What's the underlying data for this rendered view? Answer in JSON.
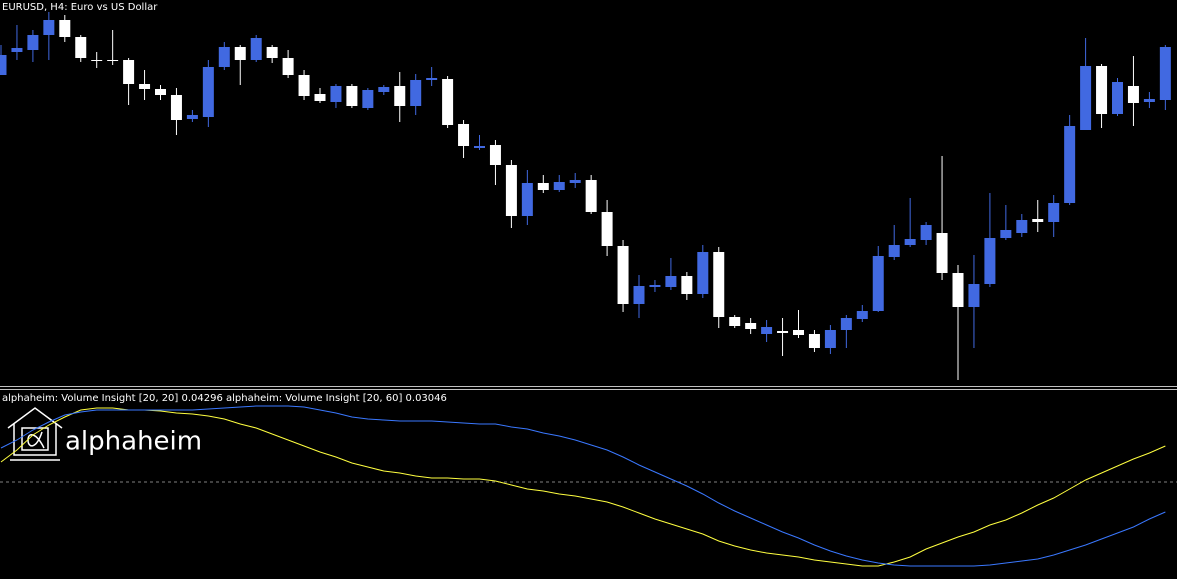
{
  "chart_data": [
    {
      "type": "candlestick",
      "title": "EURUSD, H4:  Euro vs US Dollar",
      "up_color": "#4169e1",
      "down_color": "#ffffff",
      "ylim": [
        0,
        385
      ],
      "open": [
        310,
        333,
        335,
        350,
        365,
        348,
        325,
        325,
        325,
        301,
        296,
        290,
        266,
        268,
        318,
        338,
        325,
        338,
        327,
        310,
        291,
        283,
        299,
        277,
        293,
        299,
        279,
        305,
        306,
        261,
        237,
        240,
        220,
        169,
        202,
        195,
        202,
        205,
        173,
        139,
        81,
        98,
        98,
        109,
        91,
        133,
        68,
        62,
        51,
        54,
        55,
        51,
        37,
        55,
        66,
        74,
        128,
        140,
        145,
        152,
        112,
        78,
        101,
        147,
        152,
        166,
        163,
        182,
        255,
        319,
        271,
        299,
        283,
        285
      ],
      "high": [
        340,
        360,
        355,
        373,
        370,
        350,
        333,
        355,
        327,
        315,
        300,
        297,
        275,
        325,
        343,
        340,
        350,
        340,
        335,
        315,
        297,
        301,
        301,
        297,
        300,
        313,
        311,
        318,
        309,
        265,
        250,
        245,
        225,
        215,
        210,
        210,
        212,
        210,
        185,
        145,
        110,
        105,
        127,
        113,
        140,
        138,
        70,
        67,
        65,
        67,
        75,
        55,
        60,
        70,
        80,
        139,
        160,
        187,
        163,
        229,
        120,
        130,
        192,
        180,
        171,
        185,
        190,
        270,
        347,
        321,
        307,
        329,
        293,
        340
      ],
      "low": [
        310,
        325,
        323,
        325,
        343,
        323,
        317,
        320,
        280,
        285,
        285,
        250,
        263,
        258,
        315,
        300,
        323,
        322,
        307,
        285,
        282,
        277,
        277,
        275,
        290,
        263,
        270,
        299,
        257,
        227,
        235,
        200,
        157,
        160,
        192,
        193,
        197,
        171,
        129,
        73,
        67,
        93,
        95,
        85,
        87,
        57,
        57,
        51,
        43,
        29,
        47,
        33,
        31,
        37,
        63,
        73,
        125,
        138,
        140,
        105,
        5,
        37,
        98,
        145,
        148,
        153,
        148,
        180,
        255,
        257,
        269,
        259,
        277,
        275
      ],
      "close": [
        330,
        337,
        350,
        365,
        348,
        327,
        325,
        325,
        301,
        296,
        290,
        265,
        270,
        318,
        338,
        325,
        347,
        327,
        310,
        289,
        284,
        299,
        279,
        295,
        298,
        279,
        305,
        307,
        260,
        239,
        239,
        220,
        169,
        202,
        195,
        203,
        205,
        173,
        139,
        81,
        99,
        100,
        109,
        91,
        133,
        68,
        59,
        56,
        58,
        52,
        50,
        37,
        55,
        67,
        74,
        129,
        140,
        146,
        160,
        112,
        78,
        101,
        147,
        155,
        165,
        163,
        182,
        259,
        319,
        271,
        303,
        282,
        286,
        338
      ]
    },
    {
      "type": "line",
      "title": "alphaheim: Volume Insight [20, 20] 0.04296 alphaheim: Volume Insight [20, 60] 0.03046",
      "ylim": [
        -97,
        92
      ],
      "level": 0,
      "series": [
        {
          "color": "#ffff40",
          "values": [
            20,
            32,
            47,
            57,
            65,
            72,
            74,
            74,
            72,
            72,
            71,
            69,
            68,
            66,
            63,
            58,
            54,
            48,
            42,
            36,
            30,
            25,
            19,
            15,
            11,
            9,
            6,
            4,
            4,
            3,
            3,
            1,
            -3,
            -7,
            -9,
            -12,
            -14,
            -17,
            -20,
            -25,
            -31,
            -37,
            -42,
            -47,
            -52,
            -59,
            -64,
            -68,
            -71,
            -73,
            -75,
            -78,
            -80,
            -82,
            -84,
            -84,
            -80,
            -75,
            -67,
            -61,
            -55,
            -50,
            -43,
            -38,
            -31,
            -23,
            -16,
            -7,
            2,
            9,
            16,
            23,
            29,
            36
          ]
        },
        {
          "color": "#3a78ff",
          "values": [
            34,
            42,
            52,
            60,
            67,
            70,
            72,
            72,
            72,
            72,
            72,
            72,
            72,
            73,
            74,
            75,
            76,
            76,
            76,
            75,
            72,
            69,
            65,
            63,
            62,
            61,
            61,
            61,
            60,
            59,
            58,
            58,
            55,
            53,
            49,
            46,
            42,
            37,
            32,
            25,
            17,
            10,
            3,
            -4,
            -12,
            -21,
            -29,
            -36,
            -43,
            -50,
            -56,
            -63,
            -69,
            -74,
            -78,
            -81,
            -83,
            -84,
            -84,
            -84,
            -84,
            -84,
            -83,
            -81,
            -79,
            -77,
            -73,
            -68,
            -63,
            -57,
            -51,
            -45,
            -37,
            -30
          ]
        }
      ]
    }
  ],
  "logo_text": "alphaheim"
}
